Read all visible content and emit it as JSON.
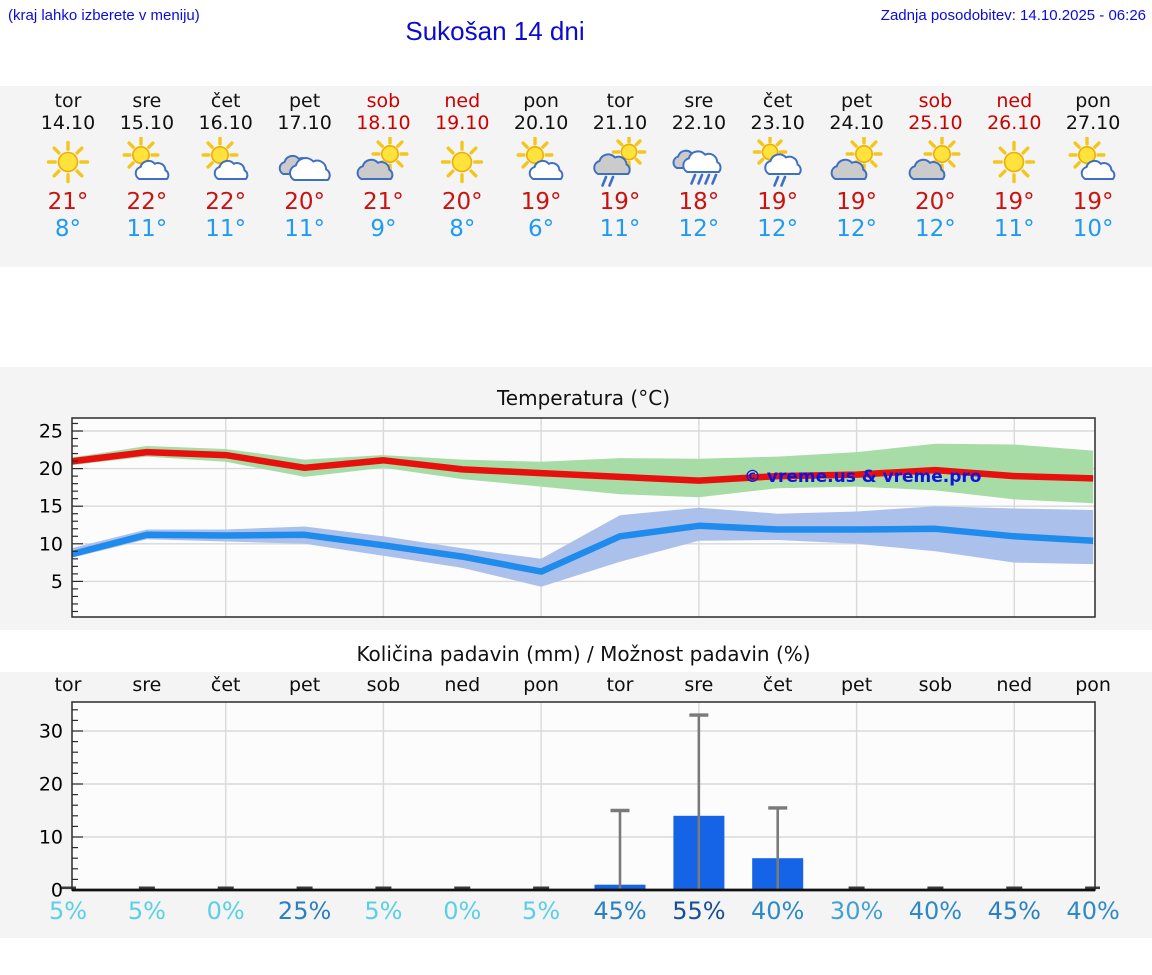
{
  "header": {
    "hint": "(kraj lahko izberete v meniju)",
    "title": "Sukošan 14 dni",
    "updated": "Zadnja posodobitev: 14.10.2025 - 06:26"
  },
  "days": [
    {
      "name": "tor",
      "date": "14.10",
      "weekend": false,
      "icon": "sunny",
      "high": "21°",
      "low": "8°",
      "pct": "5%",
      "pct_color": "#5bcfe6"
    },
    {
      "name": "sre",
      "date": "15.10",
      "weekend": false,
      "icon": "partly-sunny",
      "high": "22°",
      "low": "11°",
      "pct": "5%",
      "pct_color": "#5bcfe6"
    },
    {
      "name": "čet",
      "date": "16.10",
      "weekend": false,
      "icon": "partly-sunny",
      "high": "22°",
      "low": "11°",
      "pct": "0%",
      "pct_color": "#5bcfe6"
    },
    {
      "name": "pet",
      "date": "17.10",
      "weekend": false,
      "icon": "cloudy",
      "high": "20°",
      "low": "11°",
      "pct": "25%",
      "pct_color": "#2a80c0"
    },
    {
      "name": "sob",
      "date": "18.10",
      "weekend": true,
      "icon": "partly-sunny-left",
      "high": "21°",
      "low": "9°",
      "pct": "5%",
      "pct_color": "#5bcfe6"
    },
    {
      "name": "ned",
      "date": "19.10",
      "weekend": true,
      "icon": "sunny",
      "high": "20°",
      "low": "8°",
      "pct": "0%",
      "pct_color": "#5bcfe6"
    },
    {
      "name": "pon",
      "date": "20.10",
      "weekend": false,
      "icon": "partly-sunny",
      "high": "19°",
      "low": "6°",
      "pct": "5%",
      "pct_color": "#5bcfe6"
    },
    {
      "name": "tor",
      "date": "21.10",
      "weekend": false,
      "icon": "sun-shower-left",
      "high": "19°",
      "low": "11°",
      "pct": "45%",
      "pct_color": "#2a80c0"
    },
    {
      "name": "sre",
      "date": "22.10",
      "weekend": false,
      "icon": "rain",
      "high": "18°",
      "low": "12°",
      "pct": "55%",
      "pct_color": "#174f97"
    },
    {
      "name": "čet",
      "date": "23.10",
      "weekend": false,
      "icon": "sun-shower",
      "high": "19°",
      "low": "12°",
      "pct": "40%",
      "pct_color": "#2e8ac6"
    },
    {
      "name": "pet",
      "date": "24.10",
      "weekend": false,
      "icon": "partly-sunny-left",
      "high": "19°",
      "low": "12°",
      "pct": "30%",
      "pct_color": "#44a0d4"
    },
    {
      "name": "sob",
      "date": "25.10",
      "weekend": true,
      "icon": "partly-sunny-left",
      "high": "20°",
      "low": "12°",
      "pct": "40%",
      "pct_color": "#2e8ac6"
    },
    {
      "name": "ned",
      "date": "26.10",
      "weekend": true,
      "icon": "sunny",
      "high": "19°",
      "low": "11°",
      "pct": "45%",
      "pct_color": "#2a80c0"
    },
    {
      "name": "pon",
      "date": "27.10",
      "weekend": false,
      "icon": "partly-sunny",
      "high": "19°",
      "low": "10°",
      "pct": "40%",
      "pct_color": "#2e8ac6"
    }
  ],
  "chart_data": [
    {
      "type": "line",
      "title": "Temperatura (°C)",
      "categories": [
        "tor 14.10",
        "sre 15.10",
        "čet 16.10",
        "pet 17.10",
        "sob 18.10",
        "ned 19.10",
        "pon 20.10",
        "tor 21.10",
        "sre 22.10",
        "čet 23.10",
        "pet 24.10",
        "sob 25.10",
        "ned 26.10",
        "pon 27.10"
      ],
      "series": [
        {
          "name": "max temperature",
          "color": "#e8100c",
          "values": [
            20.9,
            22.2,
            21.8,
            20.1,
            21.1,
            19.9,
            19.4,
            18.9,
            18.4,
            19.0,
            19.2,
            19.8,
            19.0,
            18.7
          ]
        },
        {
          "name": "min temperature",
          "color": "#1f8ced",
          "values": [
            8.5,
            11.2,
            11.1,
            11.2,
            9.8,
            8.3,
            6.3,
            11.0,
            12.4,
            11.9,
            11.9,
            12.0,
            11.0,
            10.4
          ]
        }
      ],
      "bands": [
        {
          "name": "max temperature range",
          "color": "#a7dca7",
          "upper": [
            21.4,
            23.0,
            22.6,
            21.2,
            21.8,
            21.2,
            20.9,
            21.4,
            21.3,
            21.6,
            22.2,
            23.3,
            23.2,
            22.4
          ],
          "lower": [
            20.4,
            21.6,
            20.9,
            18.9,
            20.1,
            18.6,
            17.6,
            16.6,
            16.2,
            17.4,
            17.6,
            17.1,
            15.9,
            15.4
          ]
        },
        {
          "name": "min temperature range",
          "color": "#abc1ec",
          "upper": [
            9.3,
            11.9,
            11.9,
            12.3,
            11.0,
            9.4,
            8.0,
            13.8,
            14.8,
            14.0,
            14.3,
            15.0,
            14.7,
            14.5
          ],
          "lower": [
            8.0,
            10.6,
            10.3,
            10.0,
            8.4,
            6.8,
            4.3,
            7.6,
            10.4,
            10.5,
            10.0,
            9.0,
            7.5,
            7.3
          ]
        }
      ],
      "yticks": [
        5,
        10,
        15,
        20,
        25
      ],
      "ylim": [
        0.3,
        26.7
      ],
      "grid": true,
      "legend": "none",
      "watermark": "© vreme.us & vreme.pro"
    },
    {
      "type": "bar",
      "title": "Količina padavin (mm) / Možnost padavin (%)",
      "categories": [
        "tor",
        "sre",
        "čet",
        "pet",
        "sob",
        "ned",
        "pon",
        "tor",
        "sre",
        "čet",
        "pet",
        "sob",
        "ned",
        "pon"
      ],
      "values_mm": [
        0,
        0,
        0,
        0,
        0,
        0,
        0,
        1,
        14,
        6,
        0,
        0,
        0,
        0
      ],
      "whisker_max_mm": [
        0,
        0,
        0,
        0,
        0,
        0,
        0,
        15,
        33,
        15.5,
        0,
        0,
        0,
        0
      ],
      "probability_pct": [
        5,
        5,
        0,
        25,
        5,
        0,
        5,
        45,
        55,
        40,
        30,
        40,
        45,
        40
      ],
      "yticks": [
        0,
        10,
        20,
        30
      ],
      "ylim": [
        0,
        35.5
      ],
      "grid": true,
      "bar_color": "#1563e6"
    }
  ],
  "colors": {
    "header_blue": "#0b0bdd",
    "weekend_red": "#cc0000",
    "high_red": "#cc1111",
    "low_blue": "#1e9bf0",
    "strip_bg": "#f4f4f4",
    "plot_bg": "#fcfcfc",
    "gridline": "#d9d9d9",
    "whisker_gray": "#7a7a7a",
    "zero_dash": "#3d3d3d"
  }
}
